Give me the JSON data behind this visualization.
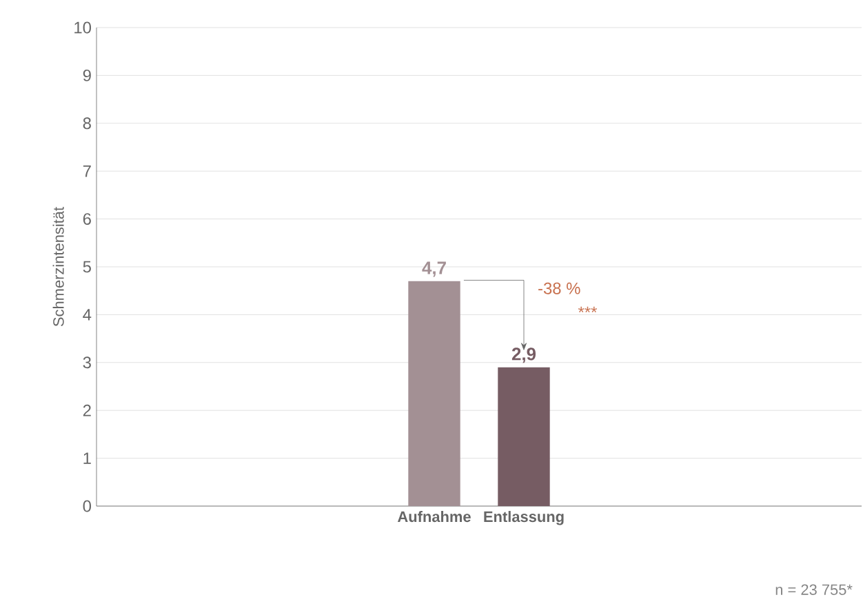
{
  "chart_data": {
    "type": "bar",
    "ylabel": "Schmerzintensität",
    "categories": [
      "Aufnahme",
      "Entlassung"
    ],
    "values": [
      4.7,
      2.9
    ],
    "colors": [
      "#a39094",
      "#765c63"
    ],
    "value_labels": [
      "4,7",
      "2,9"
    ],
    "ylim": [
      0,
      10
    ],
    "yticks": [
      0,
      1,
      2,
      3,
      4,
      5,
      6,
      7,
      8,
      9,
      10
    ],
    "grid": "y",
    "annotations": [
      "-38 %",
      "***",
      "n = 23 755*"
    ]
  }
}
